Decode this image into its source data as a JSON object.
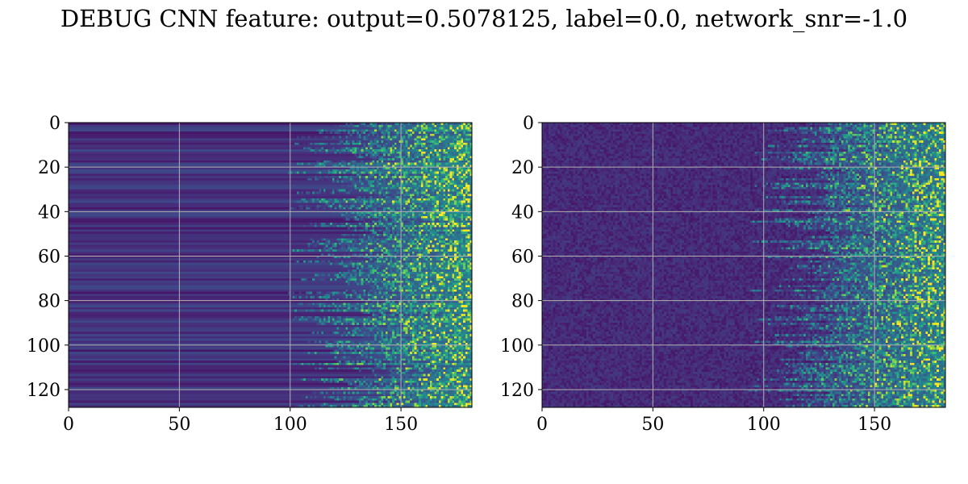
{
  "figure_title": "DEBUG CNN feature: output=0.5078125, label=0.0, network_snr=-1.0",
  "colormap": "viridis",
  "grid": true,
  "grid_color": "#b0b0b0",
  "chart_data": [
    {
      "type": "heatmap",
      "title": "",
      "xlabel": "",
      "ylabel": "",
      "xlim": [
        0,
        182
      ],
      "ylim": [
        128,
        0
      ],
      "x_ticks": [
        0,
        50,
        100,
        150
      ],
      "y_ticks": [
        0,
        20,
        40,
        60,
        80,
        100,
        120
      ],
      "rows": 128,
      "cols": 182,
      "onset_col": 118,
      "pattern": "horizontal banding on left, bright speckle onset near x=120-150"
    },
    {
      "type": "heatmap",
      "title": "",
      "xlabel": "",
      "ylabel": "",
      "xlim": [
        0,
        182
      ],
      "ylim": [
        128,
        0
      ],
      "x_ticks": [
        0,
        50,
        100,
        150
      ],
      "y_ticks": [
        0,
        20,
        40,
        60,
        80,
        100,
        120
      ],
      "rows": 128,
      "cols": 182,
      "onset_col": 112,
      "pattern": "noisy dark background on left, bright speckle onset near x=115-150"
    }
  ]
}
